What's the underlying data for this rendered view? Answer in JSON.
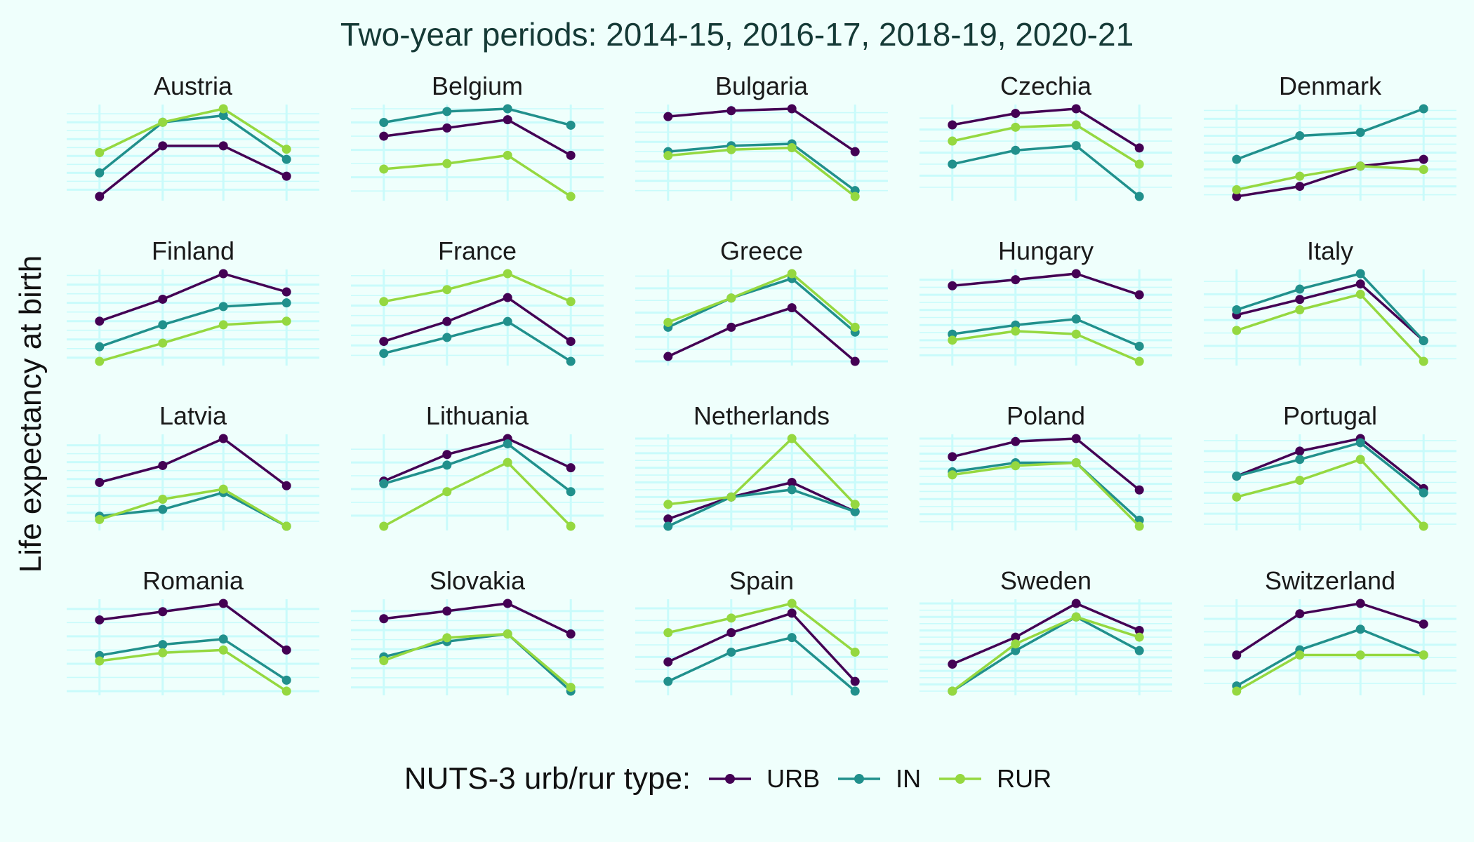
{
  "chart_data": {
    "type": "line",
    "title": "Two-year periods: 2014-15, 2016-17, 2018-19, 2020-21",
    "ylabel": "Life expectancy at birth",
    "xlabel": "",
    "x": [
      "2014-15",
      "2016-17",
      "2018-19",
      "2020-21"
    ],
    "facet_scales": "free_y",
    "grid": true,
    "legend": {
      "title": "NUTS-3 urb/rur type:",
      "position": "bottom",
      "entries": [
        {
          "key": "URB",
          "color": "#440154"
        },
        {
          "key": "IN",
          "color": "#21908c"
        },
        {
          "key": "RUR",
          "color": "#95d840"
        }
      ]
    },
    "facets": [
      {
        "name": "Austria",
        "series": [
          {
            "name": "URB",
            "values": [
              80.3,
              81.8,
              81.8,
              80.9
            ]
          },
          {
            "name": "IN",
            "values": [
              81.0,
              82.5,
              82.7,
              81.4
            ]
          },
          {
            "name": "RUR",
            "values": [
              81.6,
              82.5,
              82.9,
              81.7
            ]
          }
        ]
      },
      {
        "name": "Belgium",
        "series": [
          {
            "name": "URB",
            "values": [
              80.5,
              80.8,
              81.1,
              79.8
            ]
          },
          {
            "name": "IN",
            "values": [
              81.0,
              81.4,
              81.5,
              80.9
            ]
          },
          {
            "name": "RUR",
            "values": [
              79.3,
              79.5,
              79.8,
              78.3
            ]
          }
        ]
      },
      {
        "name": "Bulgaria",
        "series": [
          {
            "name": "URB",
            "values": [
              75.3,
              75.6,
              75.7,
              73.5
            ]
          },
          {
            "name": "IN",
            "values": [
              73.5,
              73.8,
              73.9,
              71.5
            ]
          },
          {
            "name": "RUR",
            "values": [
              73.3,
              73.6,
              73.7,
              71.2
            ]
          }
        ]
      },
      {
        "name": "Czechia",
        "series": [
          {
            "name": "URB",
            "values": [
              79.2,
              79.7,
              79.9,
              78.2
            ]
          },
          {
            "name": "IN",
            "values": [
              77.5,
              78.1,
              78.3,
              76.1
            ]
          },
          {
            "name": "RUR",
            "values": [
              78.5,
              79.1,
              79.2,
              77.5
            ]
          }
        ]
      },
      {
        "name": "Denmark",
        "series": [
          {
            "name": "URB",
            "values": [
              80.2,
              80.5,
              81.1,
              81.3
            ]
          },
          {
            "name": "IN",
            "values": [
              81.3,
              82.0,
              82.1,
              82.8
            ]
          },
          {
            "name": "RUR",
            "values": [
              80.4,
              80.8,
              81.1,
              81.0
            ]
          }
        ]
      },
      {
        "name": "Finland",
        "series": [
          {
            "name": "URB",
            "values": [
              81.5,
              82.1,
              82.8,
              82.3
            ]
          },
          {
            "name": "IN",
            "values": [
              80.8,
              81.4,
              81.9,
              82.0
            ]
          },
          {
            "name": "RUR",
            "values": [
              80.4,
              80.9,
              81.4,
              81.5
            ]
          }
        ]
      },
      {
        "name": "France",
        "series": [
          {
            "name": "URB",
            "values": [
              82.1,
              82.6,
              83.2,
              82.1
            ]
          },
          {
            "name": "IN",
            "values": [
              81.8,
              82.2,
              82.6,
              81.6
            ]
          },
          {
            "name": "RUR",
            "values": [
              83.1,
              83.4,
              83.8,
              83.1
            ]
          }
        ]
      },
      {
        "name": "Greece",
        "series": [
          {
            "name": "URB",
            "values": [
              80.6,
              81.2,
              81.6,
              80.5
            ]
          },
          {
            "name": "IN",
            "values": [
              81.2,
              81.8,
              82.2,
              81.1
            ]
          },
          {
            "name": "RUR",
            "values": [
              81.3,
              81.8,
              82.3,
              81.2
            ]
          }
        ]
      },
      {
        "name": "Hungary",
        "series": [
          {
            "name": "URB",
            "values": [
              77.3,
              77.5,
              77.7,
              77.0
            ]
          },
          {
            "name": "IN",
            "values": [
              75.7,
              76.0,
              76.2,
              75.3
            ]
          },
          {
            "name": "RUR",
            "values": [
              75.5,
              75.8,
              75.7,
              74.8
            ]
          }
        ]
      },
      {
        "name": "Italy",
        "series": [
          {
            "name": "URB",
            "values": [
              82.6,
              82.9,
              83.2,
              82.1
            ]
          },
          {
            "name": "IN",
            "values": [
              82.7,
              83.1,
              83.4,
              82.1
            ]
          },
          {
            "name": "RUR",
            "values": [
              82.3,
              82.7,
              83.0,
              81.7
            ]
          }
        ]
      },
      {
        "name": "Latvia",
        "series": [
          {
            "name": "URB",
            "values": [
              75.4,
              75.9,
              76.7,
              75.3
            ]
          },
          {
            "name": "IN",
            "values": [
              74.4,
              74.6,
              75.1,
              74.1
            ]
          },
          {
            "name": "RUR",
            "values": [
              74.3,
              74.9,
              75.2,
              74.1
            ]
          }
        ]
      },
      {
        "name": "Lithuania",
        "series": [
          {
            "name": "URB",
            "values": [
              75.3,
              76.3,
              76.9,
              75.8
            ]
          },
          {
            "name": "IN",
            "values": [
              75.2,
              75.9,
              76.7,
              74.9
            ]
          },
          {
            "name": "RUR",
            "values": [
              73.6,
              74.9,
              76.0,
              73.6
            ]
          }
        ]
      },
      {
        "name": "Netherlands",
        "series": [
          {
            "name": "URB",
            "values": [
              81.5,
              81.8,
              82.0,
              81.6
            ]
          },
          {
            "name": "IN",
            "values": [
              81.4,
              81.8,
              81.9,
              81.6
            ]
          },
          {
            "name": "RUR",
            "values": [
              81.7,
              81.8,
              82.6,
              81.7
            ]
          }
        ]
      },
      {
        "name": "Poland",
        "series": [
          {
            "name": "URB",
            "values": [
              78.4,
              78.9,
              79.0,
              77.3
            ]
          },
          {
            "name": "IN",
            "values": [
              77.9,
              78.2,
              78.2,
              76.3
            ]
          },
          {
            "name": "RUR",
            "values": [
              77.8,
              78.1,
              78.2,
              76.1
            ]
          }
        ]
      },
      {
        "name": "Portugal",
        "series": [
          {
            "name": "URB",
            "values": [
              80.9,
              81.5,
              81.8,
              80.6
            ]
          },
          {
            "name": "IN",
            "values": [
              80.9,
              81.3,
              81.7,
              80.5
            ]
          },
          {
            "name": "RUR",
            "values": [
              80.4,
              80.8,
              81.3,
              79.7
            ]
          }
        ]
      },
      {
        "name": "Romania",
        "series": [
          {
            "name": "URB",
            "values": [
              76.6,
              76.9,
              77.2,
              75.5
            ]
          },
          {
            "name": "IN",
            "values": [
              75.3,
              75.7,
              75.9,
              74.4
            ]
          },
          {
            "name": "RUR",
            "values": [
              75.1,
              75.4,
              75.5,
              74.0
            ]
          }
        ]
      },
      {
        "name": "Slovakia",
        "series": [
          {
            "name": "URB",
            "values": [
              78.8,
              79.0,
              79.2,
              78.4
            ]
          },
          {
            "name": "IN",
            "values": [
              77.8,
              78.2,
              78.4,
              76.9
            ]
          },
          {
            "name": "RUR",
            "values": [
              77.7,
              78.3,
              78.4,
              77.0
            ]
          }
        ]
      },
      {
        "name": "Spain",
        "series": [
          {
            "name": "URB",
            "values": [
              82.9,
              83.5,
              83.9,
              82.5
            ]
          },
          {
            "name": "IN",
            "values": [
              82.5,
              83.1,
              83.4,
              82.3
            ]
          },
          {
            "name": "RUR",
            "values": [
              83.5,
              83.8,
              84.1,
              83.1
            ]
          }
        ]
      },
      {
        "name": "Sweden",
        "series": [
          {
            "name": "URB",
            "values": [
              81.9,
              82.3,
              82.8,
              82.4
            ]
          },
          {
            "name": "IN",
            "values": [
              81.5,
              82.1,
              82.6,
              82.1
            ]
          },
          {
            "name": "RUR",
            "values": [
              81.5,
              82.2,
              82.6,
              82.3
            ]
          }
        ]
      },
      {
        "name": "Switzerland",
        "series": [
          {
            "name": "URB",
            "values": [
              82.8,
              83.6,
              83.8,
              83.4
            ]
          },
          {
            "name": "IN",
            "values": [
              82.2,
              82.9,
              83.3,
              82.8
            ]
          },
          {
            "name": "RUR",
            "values": [
              82.1,
              82.8,
              82.8,
              82.8
            ]
          }
        ]
      }
    ]
  }
}
